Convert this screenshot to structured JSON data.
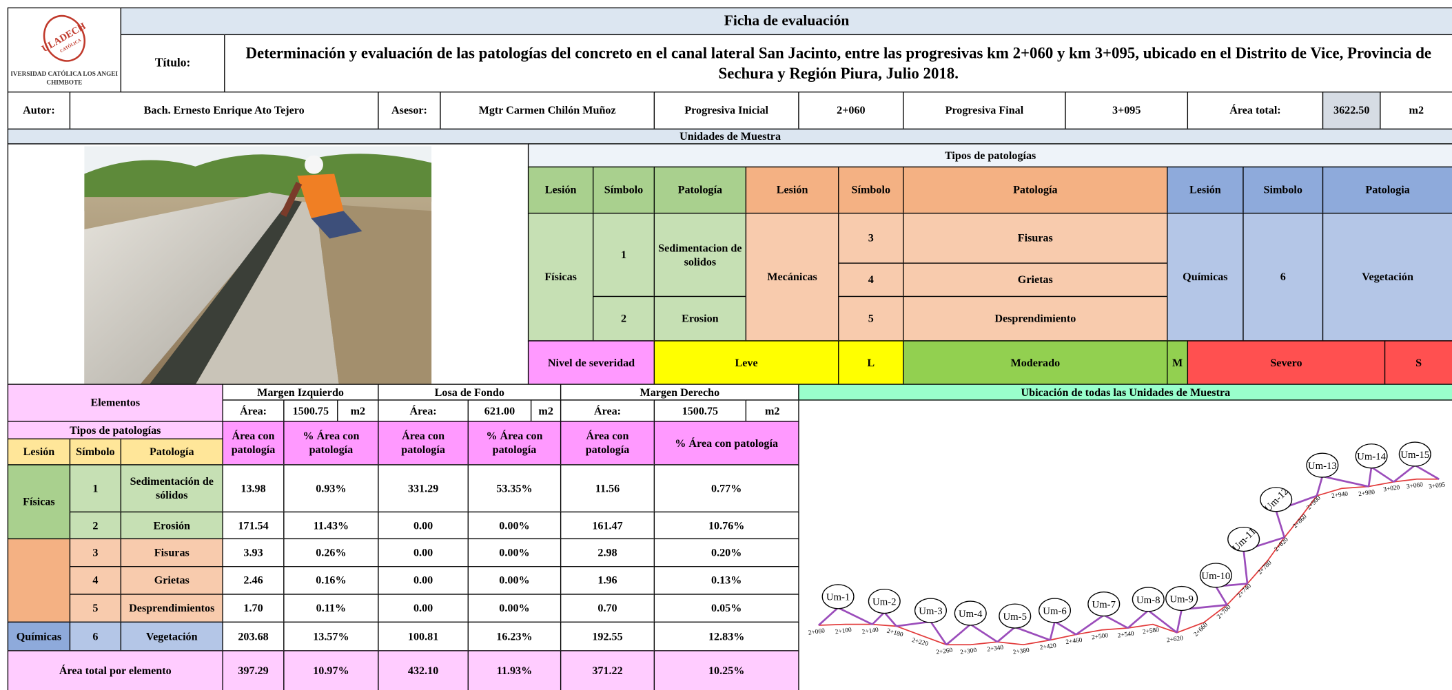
{
  "header": {
    "title": "Ficha de evaluación",
    "logo": {
      "name": "ULADECH",
      "motto": "CATÓLICA",
      "university": "UNIVERSIDAD CATÓLICA LOS ANGELES",
      "city": "CHIMBOTE"
    },
    "title_label": "Título:",
    "title_text": "Determinación y evaluación de las patologías del concreto en el canal lateral San Jacinto, entre las progresivas km 2+060 y km 3+095, ubicado en el Distrito de Vice, Provincia de Sechura y Región Piura, Julio 2018."
  },
  "info": [
    "Autor:",
    "Bach. Ernesto Enrique Ato Tejero",
    "Asesor:",
    "Mgtr Carmen Chilón Muñoz",
    "Progresiva Inicial",
    "2+060",
    "Progresiva Final",
    "3+095",
    "Área total:",
    "3622.50",
    "m2"
  ],
  "units_header": "Unidades de Muestra",
  "legend": {
    "title": "Tipos de patologías",
    "headers": [
      "Lesión",
      "Símbolo",
      "Patología",
      "Lesión",
      "Símbolo",
      "Patología",
      "Lesión",
      "Simbolo",
      "Patologia"
    ],
    "groups": [
      {
        "lesion": "Físicas",
        "items": [
          {
            "symbol": "1",
            "name": "Sedimentacion de solidos"
          },
          {
            "symbol": "2",
            "name": "Erosion"
          }
        ]
      },
      {
        "lesion": "Mecánicas",
        "items": [
          {
            "symbol": "3",
            "name": "Fisuras"
          },
          {
            "symbol": "4",
            "name": "Grietas"
          },
          {
            "symbol": "5",
            "name": "Desprendimiento"
          }
        ]
      },
      {
        "lesion": "Químicas",
        "items": [
          {
            "symbol": "6",
            "name": "Vegetación"
          }
        ]
      }
    ]
  },
  "severity": {
    "label": "Nivel de severidad",
    "levels": [
      {
        "name": "Leve",
        "code": "L"
      },
      {
        "name": "Moderado",
        "code": "M"
      },
      {
        "name": "Severo",
        "code": "S"
      }
    ]
  },
  "elements": {
    "header": "Elementos",
    "columns": [
      {
        "name": "Margen Izquierdo",
        "area_label": "Área:",
        "area": "1500.75",
        "unit": "m2"
      },
      {
        "name": "Losa de Fondo",
        "area_label": "Área:",
        "area": "621.00",
        "unit": "m2"
      },
      {
        "name": "Margen Derecho",
        "area_label": "Área:",
        "area": "1500.75",
        "unit": "m2"
      }
    ],
    "types_header": "Tipos de patologías",
    "sub_headers": [
      "Lesión",
      "Símbolo",
      "Patología"
    ],
    "value_headers": [
      "Área con patología",
      "% Área con patología",
      "Área con patología",
      "% Área con patología",
      "Área con patología",
      "% Área con patología"
    ],
    "rows": [
      {
        "lesion": "Físicas",
        "symbol": "1",
        "name": "Sedimentación de sólidos",
        "values": [
          "13.98",
          "0.93%",
          "331.29",
          "53.35%",
          "11.56",
          "0.77%"
        ]
      },
      {
        "symbol": "2",
        "name": "Erosión",
        "values": [
          "171.54",
          "11.43%",
          "0.00",
          "0.00%",
          "161.47",
          "10.76%"
        ]
      },
      {
        "symbol": "3",
        "name": "Fisuras",
        "values": [
          "3.93",
          "0.26%",
          "0.00",
          "0.00%",
          "2.98",
          "0.20%"
        ]
      },
      {
        "symbol": "4",
        "name": "Grietas",
        "values": [
          "2.46",
          "0.16%",
          "0.00",
          "0.00%",
          "1.96",
          "0.13%"
        ]
      },
      {
        "symbol": "5",
        "name": "Desprendimientos",
        "values": [
          "1.70",
          "0.11%",
          "0.00",
          "0.00%",
          "0.70",
          "0.05%"
        ]
      },
      {
        "lesion": "Químicas",
        "symbol": "6",
        "name": "Vegetación",
        "values": [
          "203.68",
          "13.57%",
          "100.81",
          "16.23%",
          "192.55",
          "12.83%"
        ]
      }
    ],
    "total": {
      "label": "Área total por elemento",
      "values": [
        "397.29",
        "10.97%",
        "432.10",
        "11.93%",
        "371.22",
        "10.25%"
      ]
    }
  },
  "map": {
    "title": "Ubicación de todas las Unidades de Muestra",
    "units": [
      "Um-1",
      "Um-2",
      "Um-3",
      "Um-4",
      "Um-5",
      "Um-6",
      "Um-7",
      "Um-8",
      "Um-9",
      "Um-10",
      "Um-11",
      "Um-12",
      "Um-13",
      "Um-14",
      "Um-15"
    ],
    "stations": [
      "2+060",
      "2+100",
      "2+140",
      "2+180",
      "2+220",
      "2+260",
      "2+300",
      "2+340",
      "2+380",
      "2+420",
      "2+460",
      "2+500",
      "2+540",
      "2+580",
      "2+620",
      "2+660",
      "2+700",
      "2+740",
      "2+780",
      "2+820",
      "2+860",
      "2+900",
      "2+940",
      "2+980",
      "3+020",
      "3+060",
      "3+095"
    ]
  }
}
